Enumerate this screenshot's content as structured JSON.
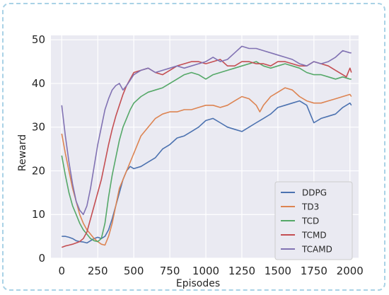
{
  "chart_data": {
    "type": "line",
    "title": "",
    "xlabel": "Episodes",
    "ylabel": "Reward",
    "xlim": [
      -75,
      2060
    ],
    "ylim": [
      0,
      51
    ],
    "xticks": [
      0,
      250,
      500,
      750,
      1000,
      1250,
      1500,
      1750,
      2000
    ],
    "yticks": [
      0,
      10,
      20,
      30,
      40,
      50
    ],
    "grid": true,
    "legend_position": "bottom-right",
    "background": "#eaeaf2",
    "series": [
      {
        "name": "DDPG",
        "color": "#4c72b0",
        "x": [
          0,
          25,
          50,
          75,
          100,
          125,
          150,
          175,
          200,
          225,
          250,
          275,
          300,
          325,
          350,
          375,
          400,
          425,
          450,
          475,
          500,
          550,
          600,
          650,
          700,
          750,
          800,
          850,
          900,
          950,
          1000,
          1050,
          1100,
          1150,
          1200,
          1250,
          1300,
          1350,
          1400,
          1450,
          1500,
          1550,
          1600,
          1650,
          1700,
          1725,
          1750,
          1800,
          1850,
          1900,
          1950,
          2000,
          2010
        ],
        "y": [
          5,
          5,
          4.8,
          4.5,
          4,
          3.8,
          3.7,
          3.5,
          4,
          4.5,
          4.8,
          4.5,
          5,
          6.5,
          9,
          12,
          15,
          18,
          20,
          21,
          20.5,
          21,
          22,
          23,
          25,
          26,
          27.5,
          28,
          29,
          30,
          31.5,
          32,
          31,
          30,
          29.5,
          29,
          30,
          31,
          32,
          33,
          34.5,
          35,
          35.5,
          36,
          35,
          33,
          31,
          32,
          32.5,
          33,
          34.5,
          35.5,
          35
        ]
      },
      {
        "name": "TD3",
        "color": "#dd8452",
        "x": [
          0,
          25,
          50,
          75,
          100,
          125,
          150,
          175,
          200,
          225,
          250,
          275,
          300,
          325,
          350,
          375,
          400,
          450,
          500,
          550,
          600,
          650,
          700,
          750,
          800,
          850,
          900,
          950,
          1000,
          1050,
          1100,
          1150,
          1200,
          1250,
          1300,
          1350,
          1375,
          1400,
          1450,
          1500,
          1550,
          1600,
          1650,
          1700,
          1750,
          1800,
          1850,
          1900,
          1950,
          2000,
          2010
        ],
        "y": [
          28.5,
          24,
          20,
          16,
          13,
          10,
          8,
          6.5,
          5.5,
          4.5,
          3.8,
          3.2,
          3,
          5,
          8,
          12,
          16,
          20,
          24,
          28,
          30,
          32,
          33,
          33.5,
          33.5,
          34,
          34,
          34.5,
          35,
          35,
          34.5,
          35,
          36,
          37,
          36.5,
          35,
          33.5,
          35,
          37,
          38,
          39,
          38.5,
          37,
          36,
          35.5,
          35.5,
          36,
          36.5,
          37,
          37.5,
          37
        ]
      },
      {
        "name": "TCD",
        "color": "#55a868",
        "x": [
          0,
          25,
          50,
          75,
          100,
          125,
          150,
          175,
          200,
          225,
          250,
          275,
          300,
          325,
          350,
          375,
          400,
          425,
          450,
          475,
          500,
          550,
          600,
          650,
          700,
          750,
          800,
          850,
          900,
          950,
          1000,
          1050,
          1100,
          1150,
          1200,
          1250,
          1300,
          1350,
          1400,
          1450,
          1500,
          1550,
          1600,
          1650,
          1700,
          1750,
          1800,
          1850,
          1900,
          1950,
          2000,
          2010
        ],
        "y": [
          23.5,
          19,
          15,
          12,
          10,
          8,
          6.5,
          5.5,
          4.5,
          4,
          3.8,
          4.5,
          8,
          14,
          19,
          23,
          27,
          30,
          32,
          34,
          35.5,
          37,
          38,
          38.5,
          39,
          40,
          41,
          42,
          42.5,
          42,
          41,
          42,
          42.5,
          43,
          43.5,
          44,
          44.5,
          45,
          44,
          43.5,
          44,
          44.5,
          44,
          43.5,
          42.5,
          42,
          42,
          41.5,
          41,
          41.5,
          41,
          41
        ]
      },
      {
        "name": "TCMD",
        "color": "#c44e52",
        "x": [
          0,
          25,
          50,
          75,
          100,
          125,
          150,
          175,
          200,
          225,
          250,
          275,
          300,
          325,
          350,
          375,
          400,
          425,
          450,
          475,
          500,
          550,
          600,
          650,
          700,
          750,
          800,
          850,
          900,
          950,
          1000,
          1050,
          1100,
          1150,
          1200,
          1250,
          1300,
          1350,
          1400,
          1450,
          1500,
          1550,
          1600,
          1650,
          1700,
          1750,
          1800,
          1850,
          1900,
          1950,
          1975,
          2000,
          2010
        ],
        "y": [
          2.5,
          2.8,
          3,
          3.2,
          3.5,
          3.8,
          4.5,
          6,
          9,
          12,
          15,
          18,
          22,
          26,
          29.5,
          32.5,
          35,
          37.5,
          39.5,
          41,
          42.5,
          43,
          43.5,
          42.5,
          42,
          43,
          44,
          44.5,
          45,
          45,
          44.5,
          45,
          45.5,
          44,
          44,
          45,
          45,
          44.5,
          44.5,
          44,
          45,
          45,
          44.5,
          44,
          44,
          45,
          44.5,
          44,
          43,
          42,
          41.5,
          43.5,
          42.5
        ]
      },
      {
        "name": "TCAMD",
        "color": "#8172b3",
        "x": [
          0,
          25,
          50,
          75,
          100,
          125,
          150,
          175,
          200,
          225,
          250,
          275,
          300,
          325,
          350,
          375,
          400,
          425,
          450,
          500,
          550,
          600,
          650,
          700,
          750,
          800,
          850,
          900,
          950,
          1000,
          1050,
          1100,
          1150,
          1200,
          1250,
          1300,
          1350,
          1400,
          1450,
          1500,
          1550,
          1600,
          1650,
          1700,
          1750,
          1800,
          1850,
          1900,
          1950,
          2000,
          2010
        ],
        "y": [
          35,
          28,
          22,
          17,
          13,
          11,
          10,
          12,
          16,
          21,
          26,
          30,
          34,
          36.5,
          38.5,
          39.5,
          40,
          38.5,
          39.5,
          42,
          43,
          43.5,
          42.5,
          43,
          43.5,
          44,
          43.5,
          44,
          44.5,
          45,
          46,
          45,
          45.5,
          47,
          48.5,
          48,
          48,
          47.5,
          47,
          46.5,
          46,
          45.5,
          44.5,
          44,
          45,
          44.5,
          45,
          46,
          47.5,
          47,
          47
        ]
      }
    ]
  }
}
